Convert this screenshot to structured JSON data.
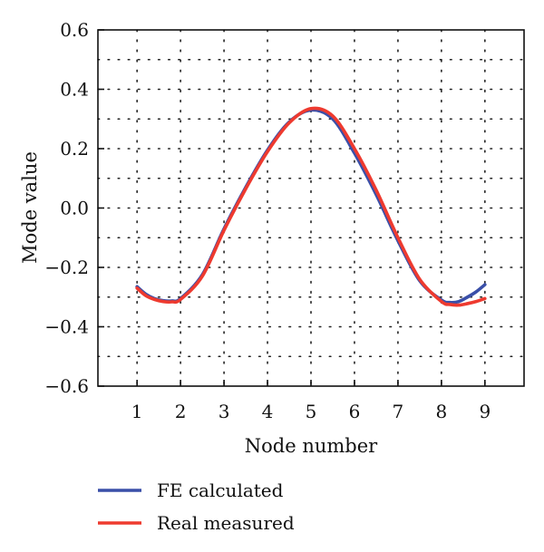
{
  "chart_data": {
    "type": "line",
    "title": "",
    "xlabel": "Node number",
    "ylabel": "Mode value",
    "xlim": [
      0.1,
      9.9
    ],
    "ylim": [
      -0.6,
      0.6
    ],
    "x_ticks": [
      1,
      2,
      3,
      4,
      5,
      6,
      7,
      8,
      9
    ],
    "x_tick_labels": [
      "1",
      "2",
      "3",
      "4",
      "5",
      "6",
      "7",
      "8",
      "9"
    ],
    "y_ticks": [
      -0.6,
      -0.4,
      -0.2,
      0.0,
      0.2,
      0.4,
      0.6
    ],
    "y_tick_labels": [
      "−0.6",
      "−0.4",
      "−0.2",
      "0.0",
      "0.2",
      "0.4",
      "0.6"
    ],
    "grid": true,
    "legend_position": "bottom",
    "series": [
      {
        "name": "FE calculated",
        "color": "#3a4fa8",
        "x": [
          1,
          1.2,
          1.4,
          1.6,
          1.8,
          2,
          2.5,
          3,
          3.5,
          4,
          4.5,
          5,
          5.5,
          6,
          6.5,
          7,
          7.5,
          8,
          8.2,
          8.4,
          8.6,
          8.8,
          9
        ],
        "y": [
          -0.265,
          -0.29,
          -0.305,
          -0.312,
          -0.313,
          -0.305,
          -0.225,
          -0.07,
          0.07,
          0.195,
          0.29,
          0.33,
          0.3,
          0.185,
          0.045,
          -0.11,
          -0.245,
          -0.31,
          -0.318,
          -0.315,
          -0.3,
          -0.282,
          -0.258
        ]
      },
      {
        "name": "Real measured",
        "color": "#ee3a2f",
        "x": [
          1,
          1.2,
          1.4,
          1.6,
          1.8,
          2,
          2.5,
          3,
          3.5,
          4,
          4.5,
          5,
          5.5,
          6,
          6.5,
          7,
          7.5,
          8,
          8.2,
          8.4,
          8.6,
          8.8,
          9
        ],
        "y": [
          -0.27,
          -0.295,
          -0.308,
          -0.315,
          -0.316,
          -0.308,
          -0.23,
          -0.075,
          0.065,
          0.19,
          0.287,
          0.335,
          0.31,
          0.2,
          0.06,
          -0.1,
          -0.24,
          -0.315,
          -0.325,
          -0.327,
          -0.322,
          -0.315,
          -0.305
        ]
      }
    ]
  }
}
